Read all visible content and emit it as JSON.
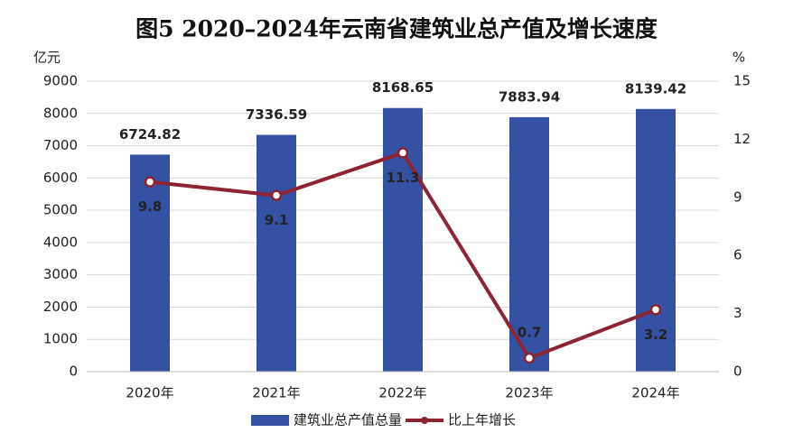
{
  "chart_data": {
    "type": "bar",
    "title": "图5  2020–2024年云南省建筑业总产值及增长速度",
    "y_label": "亿元",
    "y2_label": "%",
    "categories": [
      "2020年",
      "2021年",
      "2022年",
      "2023年",
      "2024年"
    ],
    "series": [
      {
        "name": "建筑业总产值总量",
        "type": "bar",
        "color": "#3451a3",
        "values": [
          6724.82,
          7336.59,
          8168.65,
          7883.94,
          8139.42
        ]
      },
      {
        "name": "比上年增长",
        "type": "line",
        "axis": "y2",
        "color": "#8c2434",
        "values": [
          9.8,
          9.1,
          11.3,
          0.7,
          3.2
        ]
      }
    ],
    "ylim": [
      0,
      9000
    ],
    "yticks": [
      0,
      1000,
      2000,
      3000,
      4000,
      5000,
      6000,
      7000,
      8000,
      9000
    ],
    "y2lim": [
      0,
      15
    ],
    "y2ticks": [
      0,
      3,
      6,
      9,
      12,
      15
    ],
    "grid": true,
    "legend": "bottom"
  }
}
